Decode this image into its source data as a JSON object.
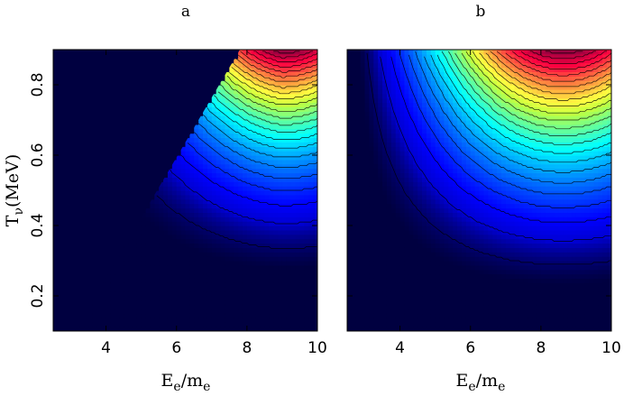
{
  "chart_data": [
    {
      "type": "heatmap",
      "panel_label": "a",
      "xlabel": "E_e/m_e",
      "ylabel": "T_ν(MeV)",
      "xlim": [
        2.5,
        10
      ],
      "ylim": [
        0.1,
        0.9
      ],
      "x_ticks": [
        4,
        6,
        8,
        10
      ],
      "y_ticks": [
        0.2,
        0.4,
        0.6,
        0.8
      ],
      "colormap": "jet",
      "contour_lines": true,
      "kinematic_boundary": [
        [
          3.1,
          0.1
        ],
        [
          4.5,
          0.3
        ],
        [
          6.0,
          0.6
        ],
        [
          7.8,
          0.9
        ]
      ],
      "max_location": [
        9.0,
        0.9
      ],
      "description_values": {
        "min": 0,
        "max": 1
      }
    },
    {
      "type": "heatmap",
      "panel_label": "b",
      "xlabel": "E_e/m_e",
      "ylabel": "",
      "xlim": [
        2.5,
        10
      ],
      "ylim": [
        0.1,
        0.9
      ],
      "x_ticks": [
        4,
        6,
        8,
        10
      ],
      "y_ticks": [
        0.2,
        0.4,
        0.6,
        0.8
      ],
      "colormap": "jet",
      "contour_lines": true,
      "kinematic_boundary": null,
      "max_location": [
        8.6,
        0.9
      ],
      "description_values": {
        "min": 0,
        "max": 1
      }
    }
  ],
  "labels": {
    "panel_a": "a",
    "panel_b": "b",
    "x_main": "E",
    "x_sub1": "e",
    "x_slash": "/m",
    "x_sub2": "e",
    "y_main": "T",
    "y_sub": "ν",
    "y_unit": "(MeV)"
  }
}
